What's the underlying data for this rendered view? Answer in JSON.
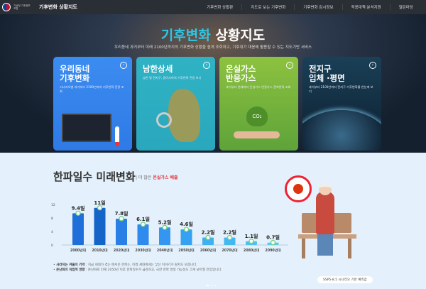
{
  "header": {
    "org": "기상청 기후정보포털",
    "title": "기후변화 상황지도",
    "nav": [
      "기후변화 상황판",
      "지도로 보는 기후변화",
      "기후변화 감시정보",
      "적응대책 분석지원",
      "열린마당"
    ]
  },
  "hero": {
    "title_accent": "기후변화",
    "title_rest": "상황지도",
    "subtitle": "우리동네 과거부터 미래 2100년까지의 기후변화 상황을 쉽게 조회하고, 기후위기 대응에 활용할 수 있는 지도기반 서비스"
  },
  "cards": [
    {
      "title1": "우리동네",
      "title2": "기후변화",
      "desc": "시나리오별 과거부터 2100년까지 기후변화 전망 조회"
    },
    {
      "title1": "남한상세",
      "title2": "",
      "desc": "남한 및 전지구, 동아시아의 기후변화 전망 보기"
    },
    {
      "title1": "온실가스",
      "title2": "반응가스",
      "desc": "과거부터 현재까지 온실가스·반응가스 관측변화 조회"
    },
    {
      "title1": "전지구",
      "title2": "입체 ·평면",
      "desc": "과거부터 2100년까지 전지구 기후변화를 한눈에 보기"
    }
  ],
  "section": {
    "title": "한파일수 미래변화",
    "sub_prefix": "더 많은",
    "sub_highlight": "온실가스 배출",
    "notes": [
      {
        "head": "사라지는 겨울의 기억",
        "text": "지금 세대가 겪는 매서운 한파는, 미래 세대에게는 낯선 이야기가 될지도 모릅니다."
      },
      {
        "head": "온난화의 직접적 영향",
        "text": "온난화로 인해 2050년 이후 한파일수가 급감하고, 극한 한파 발생 가능성도 크게 낮아질 전망입니다."
      }
    ],
    "footnote": "SSP5-8.5 시나리오 기반 예측값"
  },
  "chart_data": {
    "type": "bar",
    "categories": [
      "2000년대",
      "2010년대",
      "2020년대",
      "2030년대",
      "2040년대",
      "2050년대",
      "2060년대",
      "2070년대",
      "2080년대",
      "2090년대"
    ],
    "values": [
      9.4,
      11,
      7.8,
      6.1,
      5.2,
      4.6,
      2.2,
      2.2,
      1.1,
      0.7
    ],
    "value_labels": [
      "9.4일",
      "11일",
      "7.8일",
      "6.1일",
      "5.2일",
      "4.6일",
      "2.2일",
      "2.2일",
      "1.1일",
      "0.7일"
    ],
    "yticks": [
      "0",
      "4",
      "8",
      "12"
    ],
    "ylim": [
      0,
      12
    ],
    "colors": [
      "#1e6fd9",
      "#1565c9",
      "#2a7fe6",
      "#2f8aee",
      "#3496f0",
      "#36a0f2",
      "#3fb0f0",
      "#43b8ef",
      "#4cc3ee",
      "#55cdee"
    ]
  }
}
